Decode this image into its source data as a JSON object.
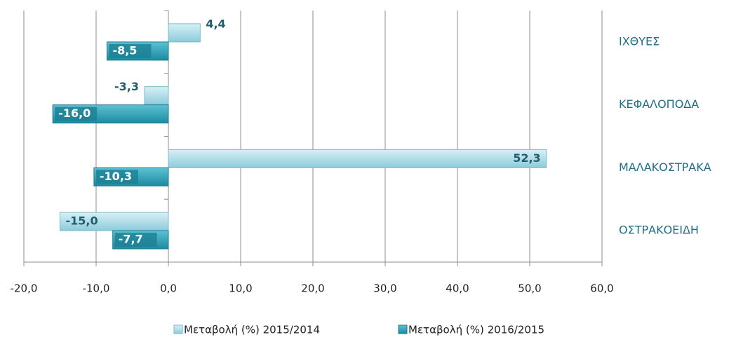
{
  "chart_data": {
    "type": "hbar",
    "categories": [
      "ΙΧΘΥΕΣ",
      "ΚΕΦΑΛΟΠΟΔΑ",
      "ΜΑΛΑΚΟΣΤΡΑΚΑ",
      "ΟΣΤΡΑΚΟΕΙΔΗ"
    ],
    "series": [
      {
        "name": "Μεταβολή (%) 2015/2014",
        "color": "#9fd6e4",
        "values": [
          4.4,
          -3.3,
          52.3,
          -15.0
        ],
        "value_labels": [
          "4,4",
          "-3,3",
          "52,3",
          "-15,0"
        ]
      },
      {
        "name": "Μεταβολή (%) 2016/2015",
        "color": "#2a9db3",
        "values": [
          -8.5,
          -16.0,
          -10.3,
          -7.7
        ],
        "value_labels": [
          "-8,5",
          "-16,0",
          "-10,3",
          "-7,7"
        ]
      }
    ],
    "xlim": [
      -20,
      60
    ],
    "xticks": [
      {
        "value": -20,
        "label": "-20,0"
      },
      {
        "value": -10,
        "label": "-10,0"
      },
      {
        "value": 0,
        "label": "0,0"
      },
      {
        "value": 10,
        "label": "10,0"
      },
      {
        "value": 20,
        "label": "20,0"
      },
      {
        "value": 30,
        "label": "30,0"
      },
      {
        "value": 40,
        "label": "40,0"
      },
      {
        "value": 50,
        "label": "50,0"
      },
      {
        "value": 60,
        "label": "60,0"
      }
    ],
    "grid": true,
    "legend": "bottom"
  }
}
